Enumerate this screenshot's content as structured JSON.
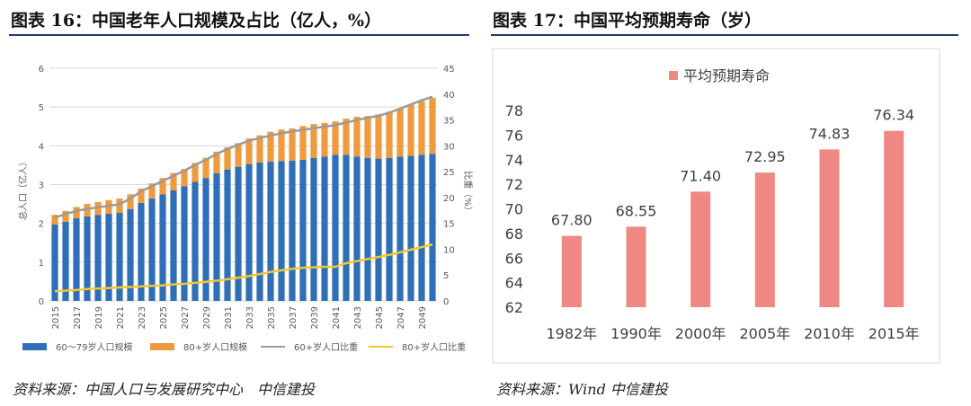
{
  "left": {
    "title": "图表 16：中国老年人口规模及占比（亿人，%）",
    "source": "资料来源：中国人口与发展研究中心　中信建投"
  },
  "right": {
    "title": "图表 17：中国平均预期寿命（岁）",
    "source": "资料来源：Wind  中信建投"
  },
  "chart_data": [
    {
      "type": "bar+line",
      "ylabel": "总人口（亿人）",
      "y2label": "比重（%）",
      "ylim": [
        0,
        6
      ],
      "y2lim": [
        0,
        45
      ],
      "grid": true,
      "legend": "bottom",
      "yticks": [
        "0",
        "1",
        "2",
        "3",
        "4",
        "5",
        "6"
      ],
      "y2ticks": [
        "0",
        "5",
        "10",
        "15",
        "20",
        "25",
        "30",
        "35",
        "40",
        "45"
      ],
      "categories": [
        2015,
        2016,
        2017,
        2018,
        2019,
        2020,
        2021,
        2022,
        2023,
        2024,
        2025,
        2026,
        2027,
        2028,
        2029,
        2030,
        2031,
        2032,
        2033,
        2034,
        2035,
        2036,
        2037,
        2038,
        2039,
        2040,
        2041,
        2042,
        2043,
        2044,
        2045,
        2046,
        2047,
        2048,
        2049,
        2050
      ],
      "series": [
        {
          "name": "60～79岁人口规模",
          "type": "stacked-bar",
          "axis": "left",
          "color": "#2e6fb7",
          "values": [
            1.97,
            2.04,
            2.13,
            2.18,
            2.22,
            2.25,
            2.27,
            2.37,
            2.53,
            2.64,
            2.75,
            2.85,
            2.96,
            3.07,
            3.17,
            3.29,
            3.39,
            3.46,
            3.53,
            3.57,
            3.59,
            3.61,
            3.62,
            3.64,
            3.69,
            3.72,
            3.77,
            3.77,
            3.72,
            3.69,
            3.67,
            3.69,
            3.72,
            3.74,
            3.77,
            3.79
          ]
        },
        {
          "name": "80+岁人口规模",
          "type": "stacked-bar",
          "axis": "left",
          "color": "#ee9a3d",
          "values": [
            0.25,
            0.28,
            0.29,
            0.32,
            0.33,
            0.35,
            0.37,
            0.38,
            0.37,
            0.39,
            0.42,
            0.45,
            0.44,
            0.49,
            0.52,
            0.56,
            0.57,
            0.61,
            0.66,
            0.7,
            0.77,
            0.81,
            0.83,
            0.87,
            0.87,
            0.87,
            0.86,
            0.93,
            1.03,
            1.08,
            1.14,
            1.19,
            1.25,
            1.33,
            1.38,
            1.45
          ]
        },
        {
          "name": "60+岁人口比重",
          "type": "line",
          "axis": "right",
          "color": "#9b9b9b",
          "values": [
            16.1,
            16.8,
            17.4,
            17.8,
            18.1,
            18.4,
            18.7,
            19.8,
            21.2,
            22.2,
            23.2,
            24.2,
            25.2,
            26.3,
            27.3,
            28.4,
            29.4,
            30.2,
            31.0,
            31.5,
            32.0,
            32.4,
            32.8,
            33.1,
            33.4,
            33.7,
            34.0,
            34.5,
            35.0,
            35.4,
            35.8,
            36.4,
            37.2,
            38.0,
            38.8,
            39.5
          ]
        },
        {
          "name": "80+岁人口比重",
          "type": "line",
          "axis": "right",
          "color": "#f2c62f",
          "values": [
            1.9,
            2.0,
            2.1,
            2.3,
            2.4,
            2.5,
            2.6,
            2.7,
            2.8,
            2.9,
            3.0,
            3.2,
            3.3,
            3.5,
            3.7,
            3.9,
            4.2,
            4.5,
            4.8,
            5.2,
            5.6,
            5.9,
            6.2,
            6.4,
            6.5,
            6.6,
            6.6,
            7.3,
            7.7,
            8.1,
            8.5,
            8.9,
            9.4,
            9.9,
            10.4,
            10.9
          ]
        }
      ]
    },
    {
      "type": "bar",
      "categories": [
        "1982年",
        "1990年",
        "2000年",
        "2005年",
        "2010年",
        "2015年"
      ],
      "values": [
        67.8,
        68.55,
        71.4,
        72.95,
        74.83,
        76.34
      ],
      "data_labels": [
        "67.80",
        "68.55",
        "71.40",
        "72.95",
        "74.83",
        "76.34"
      ],
      "series_name": "平均预期寿命",
      "color": "#ef8783",
      "ylim": [
        62,
        78
      ],
      "yticks": [
        "62",
        "64",
        "66",
        "68",
        "70",
        "72",
        "74",
        "76",
        "78"
      ],
      "grid": false,
      "legend": "top"
    }
  ]
}
